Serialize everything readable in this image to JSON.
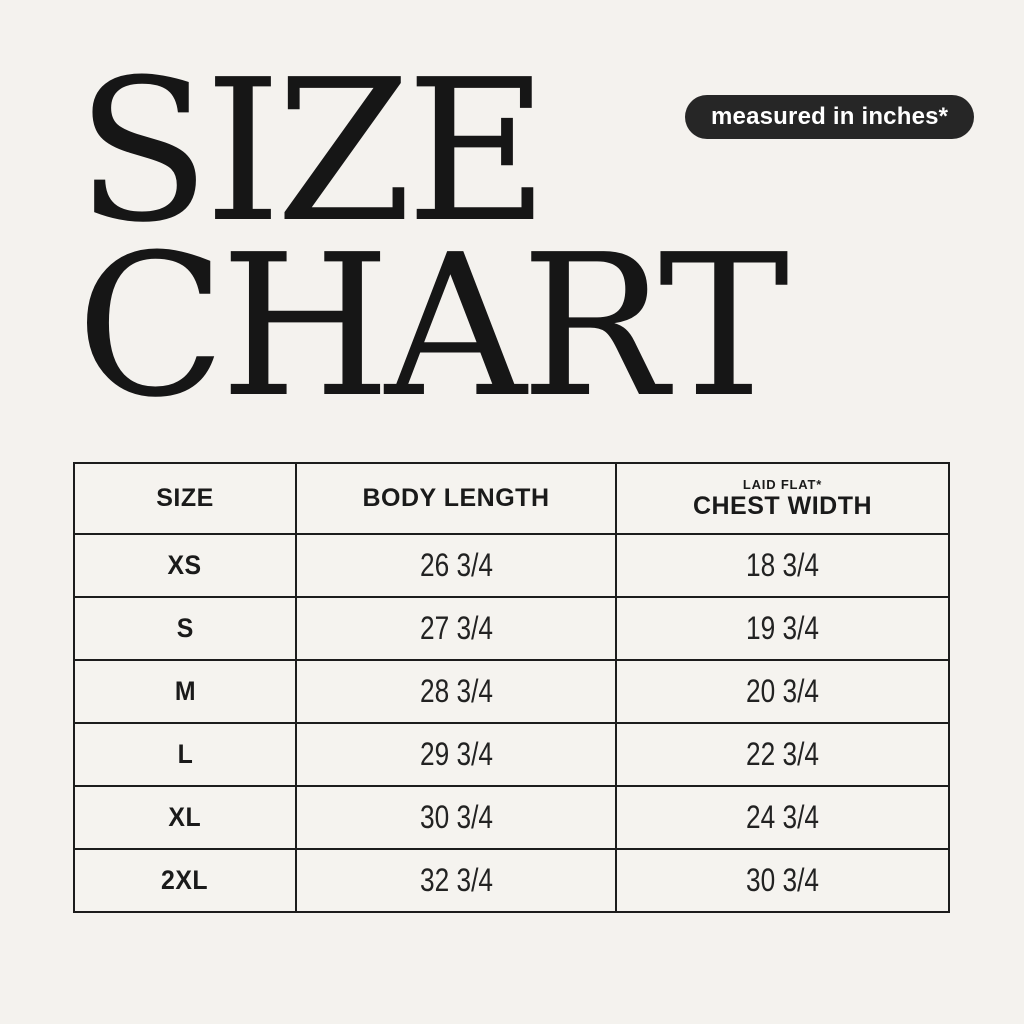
{
  "page": {
    "background_color": "#f4f2ee",
    "text_color": "#1a1a1a"
  },
  "title": {
    "line1": "SIZE",
    "line2": "CHART"
  },
  "badge": {
    "label": "measured in inches*",
    "background_color": "#262626",
    "text_color": "#ffffff"
  },
  "table": {
    "columns": [
      {
        "label": "SIZE",
        "sublabel": ""
      },
      {
        "label": "BODY LENGTH",
        "sublabel": ""
      },
      {
        "label": "CHEST WIDTH",
        "sublabel": "LAID FLAT*"
      }
    ],
    "rows": [
      {
        "size": "XS",
        "body_length": "26 3/4",
        "chest_width": "18 3/4"
      },
      {
        "size": "S",
        "body_length": "27 3/4",
        "chest_width": "19 3/4"
      },
      {
        "size": "M",
        "body_length": "28 3/4",
        "chest_width": "20 3/4"
      },
      {
        "size": "L",
        "body_length": "29 3/4",
        "chest_width": "22 3/4"
      },
      {
        "size": "XL",
        "body_length": "30 3/4",
        "chest_width": "24 3/4"
      },
      {
        "size": "2XL",
        "body_length": "32 3/4",
        "chest_width": "30 3/4"
      }
    ]
  },
  "chart_data": {
    "type": "table",
    "title": "SIZE CHART",
    "note": "measured in inches*",
    "columns": [
      "SIZE",
      "BODY LENGTH",
      "CHEST WIDTH (LAID FLAT*)"
    ],
    "rows": [
      [
        "XS",
        "26 3/4",
        "18 3/4"
      ],
      [
        "S",
        "27 3/4",
        "19 3/4"
      ],
      [
        "M",
        "28 3/4",
        "20 3/4"
      ],
      [
        "L",
        "29 3/4",
        "22 3/4"
      ],
      [
        "XL",
        "30 3/4",
        "24 3/4"
      ],
      [
        "2XL",
        "32 3/4",
        "30 3/4"
      ]
    ]
  }
}
